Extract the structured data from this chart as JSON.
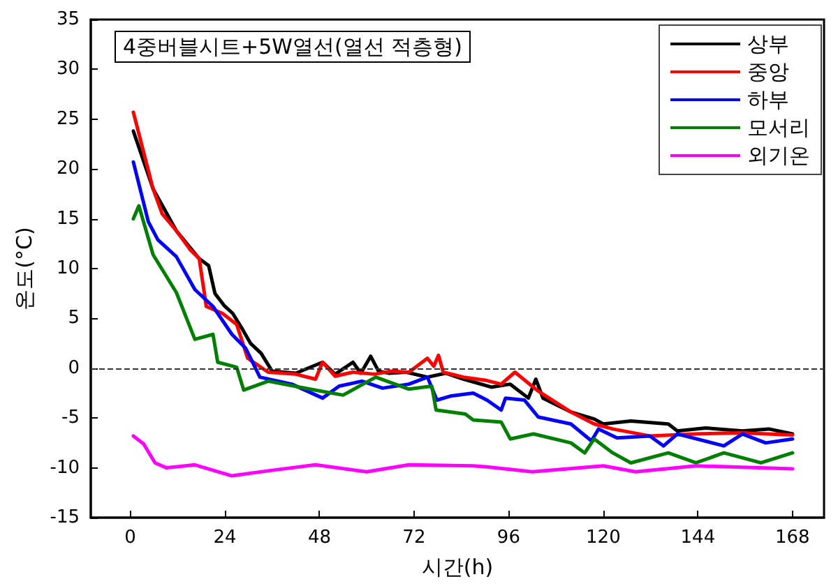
{
  "chart_data": {
    "type": "line",
    "title": "4중버블시트+5W열선(열선 적층형)",
    "xlabel": "시간(h)",
    "ylabel": "온도(°C)",
    "xlim": [
      -10,
      176
    ],
    "xticks": [
      0,
      24,
      48,
      72,
      96,
      120,
      144,
      168
    ],
    "ylim": [
      -15,
      35
    ],
    "yticks": [
      -15,
      -10,
      -5,
      0,
      5,
      10,
      15,
      20,
      25,
      30,
      35
    ],
    "grid": false,
    "legend": "top right",
    "ref_lines": [
      {
        "axis": "y",
        "value": 0,
        "line_style": "dashed",
        "color": "#333333"
      }
    ],
    "series": [
      {
        "name": "상부",
        "color": "#000000",
        "x": [
          0.8,
          5.8,
          11.7,
          17.5,
          19.9,
          21.5,
          23.8,
          26,
          28.5,
          30.5,
          33.2,
          36,
          42,
          48.8,
          52,
          56.5,
          58.5,
          61,
          63,
          65.7,
          70,
          75.4,
          80,
          84.6,
          91.6,
          96.4,
          101,
          102.9,
          104.7,
          111.8,
          117.7,
          120,
          127,
          136.5,
          138.8,
          146,
          155.3,
          162,
          168
        ],
        "values": [
          23.8,
          18,
          13.8,
          11,
          10.3,
          7.5,
          6.3,
          5.5,
          3.9,
          2.5,
          1.5,
          -0.3,
          -0.5,
          0.6,
          -0.6,
          0.6,
          -0.5,
          1.2,
          -0.3,
          -0.5,
          -0.4,
          -0.9,
          -0.5,
          -1.1,
          -1.9,
          -1.6,
          -3,
          -1.1,
          -3,
          -4.4,
          -5.1,
          -5.6,
          -5.3,
          -5.6,
          -6.3,
          -6,
          -6.3,
          -6.1,
          -6.6
        ]
      },
      {
        "name": "중앙",
        "color": "#ff0000",
        "x": [
          0.8,
          5.8,
          8.1,
          11.7,
          15.2,
          17.5,
          19.3,
          23.4,
          27,
          29.8,
          35,
          42,
          47,
          48.8,
          52,
          56.5,
          62,
          66,
          70.7,
          75.4,
          77,
          78.2,
          79.4,
          84.6,
          90,
          94.1,
          97.6,
          103.5,
          111.8,
          117.7,
          122.4,
          131.8,
          143.5,
          155,
          168
        ],
        "values": [
          25.7,
          18,
          15.5,
          13.8,
          11.9,
          11,
          6.2,
          5.5,
          4.4,
          1,
          -0.4,
          -0.6,
          -1.1,
          0.6,
          -0.8,
          -0.4,
          -0.6,
          -0.3,
          -0.4,
          1,
          0.2,
          1.3,
          -0.4,
          -0.9,
          -1.2,
          -1.6,
          -0.4,
          -2.3,
          -4.4,
          -5.6,
          -6.1,
          -6.8,
          -6.6,
          -6.5,
          -6.7
        ]
      },
      {
        "name": "하부",
        "color": "#0000ff",
        "x": [
          0.8,
          4.6,
          7,
          11.7,
          16.4,
          21,
          25.8,
          29.3,
          32.9,
          41,
          48.8,
          53,
          58.8,
          64,
          70.7,
          75.4,
          77.8,
          81.2,
          87,
          90.5,
          94.1,
          95.2,
          100,
          103.5,
          111.8,
          117,
          118.8,
          123.5,
          131.8,
          135.3,
          138.8,
          150.6,
          155.3,
          161.2,
          168
        ],
        "values": [
          20.7,
          14.7,
          12.9,
          11.2,
          7.9,
          6.2,
          3.4,
          2,
          -0.9,
          -1.6,
          -3,
          -1.8,
          -1.3,
          -2,
          -1.6,
          -0.9,
          -3.2,
          -2.8,
          -2.5,
          -3.2,
          -4.2,
          -3,
          -3.2,
          -4.9,
          -5.6,
          -7.3,
          -6.1,
          -7,
          -6.8,
          -7.8,
          -6.6,
          -7.8,
          -6.6,
          -7.5,
          -7.1
        ]
      },
      {
        "name": "모서리",
        "color": "#008000",
        "x": [
          0.8,
          2.2,
          5.8,
          11.7,
          16.4,
          21,
          22.2,
          27,
          28.8,
          35,
          47,
          54,
          62.3,
          70.7,
          76.5,
          77.6,
          85,
          87,
          94.1,
          96.4,
          102.3,
          111.8,
          115.3,
          117.7,
          122.4,
          127,
          136.5,
          143.5,
          150.6,
          160,
          168
        ],
        "values": [
          15,
          16.3,
          11.4,
          7.6,
          2.9,
          3.4,
          0.6,
          0.1,
          -2.2,
          -1.3,
          -2.2,
          -2.7,
          -0.9,
          -2.1,
          -1.8,
          -4.2,
          -4.6,
          -5.2,
          -5.4,
          -7.1,
          -6.6,
          -7.5,
          -8.5,
          -7.1,
          -8.5,
          -9.5,
          -8.5,
          -9.5,
          -8.5,
          -9.5,
          -8.5
        ]
      },
      {
        "name": "외기온",
        "color": "#ff00ff",
        "x": [
          0.8,
          3.4,
          6.3,
          9.2,
          16.4,
          25.8,
          35,
          47,
          60,
          70.7,
          87,
          90.5,
          102,
          120,
          128.2,
          143.5,
          168
        ],
        "values": [
          -6.8,
          -7.6,
          -9.5,
          -10,
          -9.7,
          -10.8,
          -10.3,
          -9.7,
          -10.4,
          -9.7,
          -9.8,
          -9.9,
          -10.4,
          -9.8,
          -10.4,
          -9.8,
          -10.1
        ]
      }
    ]
  }
}
